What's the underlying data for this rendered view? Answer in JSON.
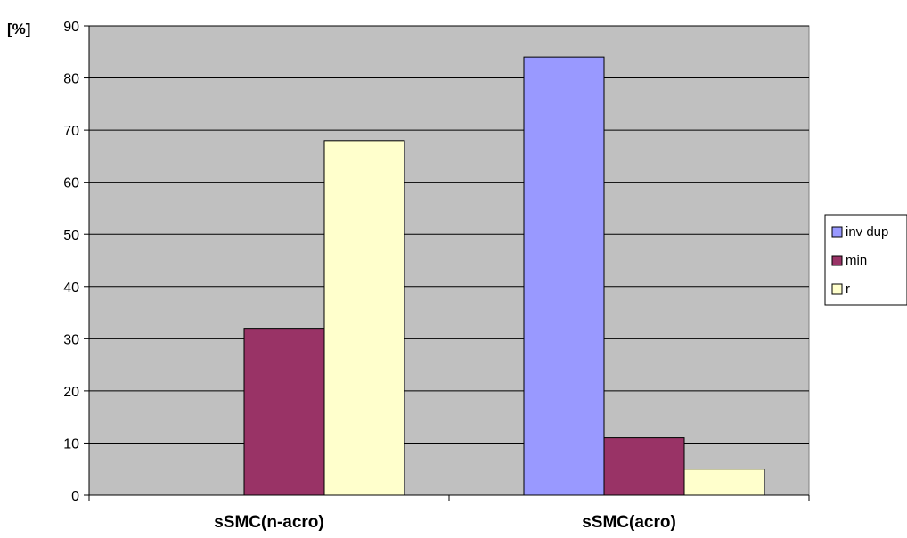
{
  "chart_data": {
    "type": "bar",
    "ylabel": "[%]",
    "ylim": [
      0,
      90
    ],
    "yticks": [
      0,
      10,
      20,
      30,
      40,
      50,
      60,
      70,
      80,
      90
    ],
    "categories": [
      "sSMC(n-acro)",
      "sSMC(acro)"
    ],
    "series": [
      {
        "name": "inv dup",
        "color": "#9999ff",
        "values": [
          0,
          84
        ]
      },
      {
        "name": "min",
        "color": "#993366",
        "values": [
          32,
          11
        ]
      },
      {
        "name": "r",
        "color": "#ffffcc",
        "values": [
          68,
          5
        ]
      }
    ],
    "grid": true,
    "legend": "right",
    "colors": {
      "plot_background": "#c0c0c0",
      "gridline": "#000000",
      "bar_outline": "#000000"
    }
  }
}
